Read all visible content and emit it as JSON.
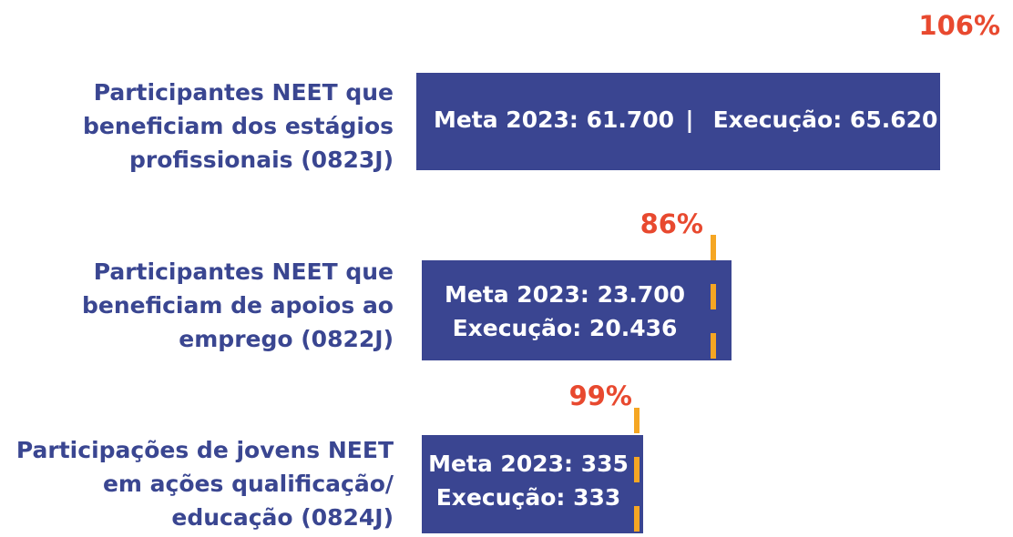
{
  "items": [
    {
      "label": [
        "Participantes NEET que",
        "beneficiam dos estágios",
        "profissionais (0823J)"
      ],
      "meta": "Meta 2023: 61.700",
      "separator": "|",
      "execucao": "Execução: 65.620",
      "percent": "106%"
    },
    {
      "label": [
        "Participantes NEET que",
        "beneficiam de apoios ao",
        "emprego (0822J)"
      ],
      "meta": "Meta 2023: 23.700",
      "execucao": "Execução: 20.436",
      "percent": "86%"
    },
    {
      "label": [
        "Participações de jovens NEET",
        "em ações qualificação/",
        "educação (0824J)"
      ],
      "meta": "Meta 2023: 335",
      "execucao": "Execução: 333",
      "percent": "99%"
    }
  ]
}
